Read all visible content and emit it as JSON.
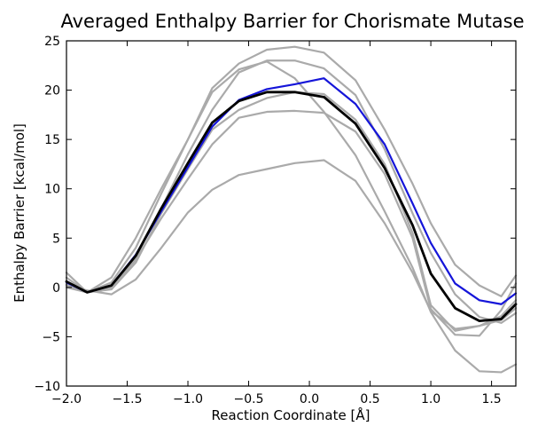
{
  "chart_data": {
    "type": "line",
    "title": "Averaged Enthalpy Barrier for Chorismate Mutase",
    "xlabel": "Reaction Coordinate [Å]",
    "ylabel": "Enthalpy Barrier [kcal/mol]",
    "xlim": [
      -2.0,
      1.7
    ],
    "ylim": [
      -10,
      25
    ],
    "xticks": [
      -2.0,
      -1.5,
      -1.0,
      -0.5,
      0.0,
      0.5,
      1.0,
      1.5
    ],
    "xtick_labels": [
      "−2.0",
      "−1.5",
      "−1.0",
      "−0.5",
      "0.0",
      "0.5",
      "1.0",
      "1.5"
    ],
    "yticks": [
      -10,
      -5,
      0,
      5,
      10,
      15,
      20,
      25
    ],
    "ytick_labels": [
      "−10",
      "−5",
      "0",
      "5",
      "10",
      "15",
      "20",
      "25"
    ],
    "grid": false,
    "colors": {
      "gray": "#aaaaaa",
      "blue": "#1515d9",
      "black": "#000000"
    },
    "series": [
      {
        "color": "#aaaaaa",
        "x": [
          -2.0,
          -1.83,
          -1.63,
          -1.43,
          -1.22,
          -1.0,
          -0.8,
          -0.58,
          -0.35,
          -0.12,
          0.12,
          0.38,
          0.62,
          0.85,
          1.0,
          1.2,
          1.4,
          1.58,
          1.7
        ],
        "y": [
          1.5,
          -0.5,
          1.0,
          5.0,
          10.0,
          15.0,
          20.2,
          22.7,
          24.1,
          24.4,
          23.8,
          21.0,
          16.0,
          10.5,
          6.5,
          2.3,
          0.2,
          -0.9,
          1.2
        ]
      },
      {
        "color": "#aaaaaa",
        "x": [
          -2.0,
          -1.83,
          -1.63,
          -1.43,
          -1.22,
          -1.0,
          -0.8,
          -0.58,
          -0.35,
          -0.12,
          0.12,
          0.38,
          0.62,
          0.85,
          1.0,
          1.2,
          1.4,
          1.58,
          1.7
        ],
        "y": [
          0.3,
          -0.5,
          0.5,
          4.0,
          9.5,
          15.0,
          19.8,
          22.1,
          22.9,
          21.2,
          17.8,
          13.4,
          7.7,
          2.0,
          -2.5,
          -6.4,
          -8.5,
          -8.6,
          -7.8
        ]
      },
      {
        "color": "#aaaaaa",
        "x": [
          -2.0,
          -1.83,
          -1.63,
          -1.43,
          -1.22,
          -1.0,
          -0.8,
          -0.58,
          -0.35,
          -0.12,
          0.12,
          0.38,
          0.62,
          0.85,
          1.0,
          1.2,
          1.4,
          1.58,
          1.7
        ],
        "y": [
          0.0,
          -0.5,
          0.0,
          3.0,
          8.0,
          13.5,
          18.0,
          21.8,
          23.0,
          23.0,
          22.2,
          19.5,
          14.0,
          7.5,
          3.5,
          -0.7,
          -3.0,
          -3.6,
          -2.6
        ]
      },
      {
        "color": "#aaaaaa",
        "x": [
          -2.0,
          -1.83,
          -1.63,
          -1.43,
          -1.22,
          -1.0,
          -0.8,
          -0.58,
          -0.35,
          -0.12,
          0.12,
          0.38,
          0.62,
          0.85,
          1.0,
          1.2,
          1.4,
          1.58,
          1.7
        ],
        "y": [
          0.2,
          -0.5,
          -0.2,
          2.5,
          7.5,
          12.0,
          16.0,
          18.0,
          19.2,
          19.8,
          19.6,
          17.0,
          12.5,
          5.5,
          -1.8,
          -4.4,
          -3.9,
          -2.9,
          -1.3
        ]
      },
      {
        "color": "#aaaaaa",
        "x": [
          -2.0,
          -1.83,
          -1.63,
          -1.43,
          -1.22,
          -1.0,
          -0.8,
          -0.58,
          -0.35,
          -0.12,
          0.12,
          0.38,
          0.62,
          0.85,
          1.0,
          1.2,
          1.4,
          1.58,
          1.7
        ],
        "y": [
          1.0,
          -0.5,
          0.0,
          2.8,
          7.0,
          11.0,
          14.5,
          17.2,
          17.8,
          17.9,
          17.7,
          15.8,
          11.5,
          5.0,
          -2.2,
          -4.8,
          -4.9,
          -2.3,
          0.4
        ]
      },
      {
        "color": "#aaaaaa",
        "x": [
          -2.0,
          -1.83,
          -1.63,
          -1.43,
          -1.22,
          -1.0,
          -0.8,
          -0.58,
          -0.35,
          -0.12,
          0.12,
          0.38,
          0.62,
          0.85,
          1.0,
          1.2,
          1.4,
          1.58,
          1.7
        ],
        "y": [
          0.2,
          -0.3,
          -0.7,
          0.8,
          4.0,
          7.6,
          9.9,
          11.4,
          12.0,
          12.6,
          12.9,
          10.8,
          6.5,
          1.5,
          -2.4,
          -4.2,
          -3.9,
          -3.3,
          -2.1
        ]
      },
      {
        "color": "#1515d9",
        "x": [
          -2.0,
          -1.83,
          -1.63,
          -1.43,
          -1.22,
          -1.0,
          -0.8,
          -0.58,
          -0.35,
          -0.12,
          0.12,
          0.38,
          0.62,
          0.85,
          1.0,
          1.2,
          1.4,
          1.58,
          1.7
        ],
        "y": [
          0.5,
          -0.5,
          0.2,
          3.3,
          7.7,
          12.2,
          16.3,
          19.0,
          20.1,
          20.6,
          21.2,
          18.6,
          14.5,
          8.5,
          4.5,
          0.4,
          -1.3,
          -1.7,
          -0.6
        ]
      },
      {
        "color": "#000000",
        "x": [
          -2.0,
          -1.83,
          -1.63,
          -1.43,
          -1.22,
          -1.0,
          -0.8,
          -0.58,
          -0.35,
          -0.12,
          0.12,
          0.38,
          0.62,
          0.85,
          1.0,
          1.2,
          1.4,
          1.58,
          1.7
        ],
        "y": [
          0.6,
          -0.5,
          0.2,
          3.2,
          8.0,
          12.6,
          16.7,
          18.9,
          19.8,
          19.8,
          19.3,
          16.6,
          12.1,
          6.3,
          1.4,
          -2.1,
          -3.4,
          -3.2,
          -1.7
        ]
      }
    ]
  }
}
